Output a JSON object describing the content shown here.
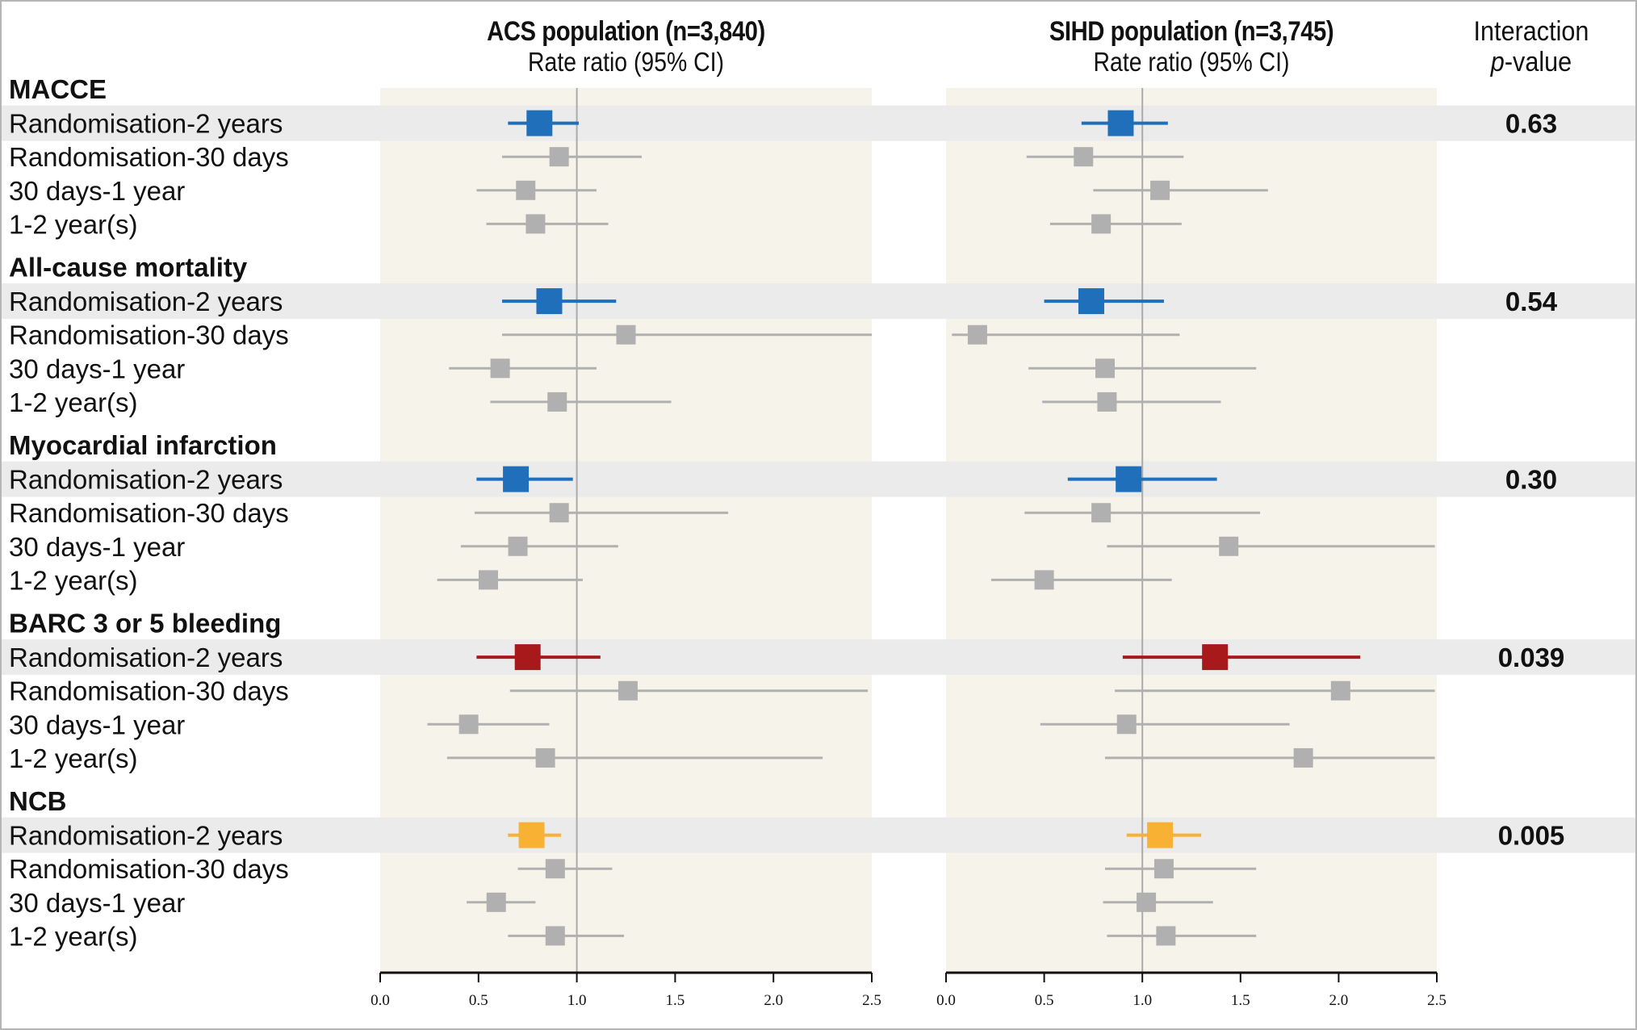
{
  "headers": {
    "acs_title": "ACS population (n=3,840)",
    "acs_subtitle": "Rate ratio (95% CI)",
    "sihd_title": "SIHD population (n=3,745)",
    "sihd_subtitle": "Rate ratio (95% CI)",
    "pvalue_line1": "Interaction",
    "pvalue_line2_italic": "p",
    "pvalue_line2_rest": "-value"
  },
  "colors": {
    "panel_bg": "#f6f4ea",
    "highlight_row": "#ebebeb",
    "reference_line": "#aaaaaa",
    "secondary_marker": "#b0b0b0",
    "macce": "#1f6fba",
    "mortality": "#1f6fba",
    "mi": "#1f6fba",
    "barc": "#a8191b",
    "ncb": "#f8b133"
  },
  "chart_data": {
    "type": "forest",
    "panels": [
      "ACS population (n=3,840)",
      "SIHD population (n=3,745)"
    ],
    "xlabel": "Rate ratio (95% CI)",
    "xlim": [
      0.0,
      2.5
    ],
    "xticks": [
      "0.0",
      "0.5",
      "1.0",
      "1.5",
      "2.0",
      "2.5"
    ],
    "reference_line": 1.0,
    "groups": [
      {
        "name": "MACCE",
        "color_key": "macce",
        "interaction_p": "0.63",
        "rows": [
          {
            "label": "Randomisation-2 years",
            "primary": true,
            "acs": {
              "est": 0.81,
              "lo": 0.65,
              "hi": 1.01
            },
            "sihd": {
              "est": 0.89,
              "lo": 0.69,
              "hi": 1.13
            }
          },
          {
            "label": "Randomisation-30 days",
            "primary": false,
            "acs": {
              "est": 0.91,
              "lo": 0.62,
              "hi": 1.33
            },
            "sihd": {
              "est": 0.7,
              "lo": 0.41,
              "hi": 1.21
            }
          },
          {
            "label": "30 days-1 year",
            "primary": false,
            "acs": {
              "est": 0.74,
              "lo": 0.49,
              "hi": 1.1
            },
            "sihd": {
              "est": 1.09,
              "lo": 0.75,
              "hi": 1.64
            }
          },
          {
            "label": "1-2 year(s)",
            "primary": false,
            "acs": {
              "est": 0.79,
              "lo": 0.54,
              "hi": 1.16
            },
            "sihd": {
              "est": 0.79,
              "lo": 0.53,
              "hi": 1.2
            }
          }
        ]
      },
      {
        "name": "All-cause mortality",
        "color_key": "mortality",
        "interaction_p": "0.54",
        "rows": [
          {
            "label": "Randomisation-2 years",
            "primary": true,
            "acs": {
              "est": 0.86,
              "lo": 0.62,
              "hi": 1.2
            },
            "sihd": {
              "est": 0.74,
              "lo": 0.5,
              "hi": 1.11
            }
          },
          {
            "label": "Randomisation-30 days",
            "primary": false,
            "acs": {
              "est": 1.25,
              "lo": 0.62,
              "hi": 2.5
            },
            "sihd": {
              "est": 0.16,
              "lo": 0.03,
              "hi": 1.19
            }
          },
          {
            "label": "30 days-1 year",
            "primary": false,
            "acs": {
              "est": 0.61,
              "lo": 0.35,
              "hi": 1.1
            },
            "sihd": {
              "est": 0.81,
              "lo": 0.42,
              "hi": 1.58
            }
          },
          {
            "label": "1-2 year(s)",
            "primary": false,
            "acs": {
              "est": 0.9,
              "lo": 0.56,
              "hi": 1.48
            },
            "sihd": {
              "est": 0.82,
              "lo": 0.49,
              "hi": 1.4
            }
          }
        ]
      },
      {
        "name": "Myocardial infarction",
        "color_key": "mi",
        "interaction_p": "0.30",
        "rows": [
          {
            "label": "Randomisation-2 years",
            "primary": true,
            "acs": {
              "est": 0.69,
              "lo": 0.49,
              "hi": 0.98
            },
            "sihd": {
              "est": 0.93,
              "lo": 0.62,
              "hi": 1.38
            }
          },
          {
            "label": "Randomisation-30 days",
            "primary": false,
            "acs": {
              "est": 0.91,
              "lo": 0.48,
              "hi": 1.77
            },
            "sihd": {
              "est": 0.79,
              "lo": 0.4,
              "hi": 1.6
            }
          },
          {
            "label": "30 days-1 year",
            "primary": false,
            "acs": {
              "est": 0.7,
              "lo": 0.41,
              "hi": 1.21
            },
            "sihd": {
              "est": 1.44,
              "lo": 0.82,
              "hi": 2.49
            }
          },
          {
            "label": "1-2 year(s)",
            "primary": false,
            "acs": {
              "est": 0.55,
              "lo": 0.29,
              "hi": 1.03
            },
            "sihd": {
              "est": 0.5,
              "lo": 0.23,
              "hi": 1.15
            }
          }
        ]
      },
      {
        "name": "BARC 3 or 5 bleeding",
        "color_key": "barc",
        "interaction_p": "0.039",
        "rows": [
          {
            "label": "Randomisation-2 years",
            "primary": true,
            "acs": {
              "est": 0.75,
              "lo": 0.49,
              "hi": 1.12
            },
            "sihd": {
              "est": 1.37,
              "lo": 0.9,
              "hi": 2.11
            }
          },
          {
            "label": "Randomisation-30 days",
            "primary": false,
            "acs": {
              "est": 1.26,
              "lo": 0.66,
              "hi": 2.48
            },
            "sihd": {
              "est": 2.01,
              "lo": 0.86,
              "hi": 2.49
            }
          },
          {
            "label": "30 days-1 year",
            "primary": false,
            "acs": {
              "est": 0.45,
              "lo": 0.24,
              "hi": 0.86
            },
            "sihd": {
              "est": 0.92,
              "lo": 0.48,
              "hi": 1.75
            }
          },
          {
            "label": "1-2 year(s)",
            "primary": false,
            "acs": {
              "est": 0.84,
              "lo": 0.34,
              "hi": 2.25
            },
            "sihd": {
              "est": 1.82,
              "lo": 0.81,
              "hi": 2.49
            }
          }
        ]
      },
      {
        "name": "NCB",
        "color_key": "ncb",
        "interaction_p": "0.005",
        "rows": [
          {
            "label": "Randomisation-2 years",
            "primary": true,
            "acs": {
              "est": 0.77,
              "lo": 0.65,
              "hi": 0.92
            },
            "sihd": {
              "est": 1.09,
              "lo": 0.92,
              "hi": 1.3
            }
          },
          {
            "label": "Randomisation-30 days",
            "primary": false,
            "acs": {
              "est": 0.89,
              "lo": 0.7,
              "hi": 1.18
            },
            "sihd": {
              "est": 1.11,
              "lo": 0.81,
              "hi": 1.58
            }
          },
          {
            "label": "30 days-1 year",
            "primary": false,
            "acs": {
              "est": 0.59,
              "lo": 0.44,
              "hi": 0.79
            },
            "sihd": {
              "est": 1.02,
              "lo": 0.8,
              "hi": 1.36
            }
          },
          {
            "label": "1-2 year(s)",
            "primary": false,
            "acs": {
              "est": 0.89,
              "lo": 0.65,
              "hi": 1.24
            },
            "sihd": {
              "est": 1.12,
              "lo": 0.82,
              "hi": 1.58
            }
          }
        ]
      }
    ]
  }
}
